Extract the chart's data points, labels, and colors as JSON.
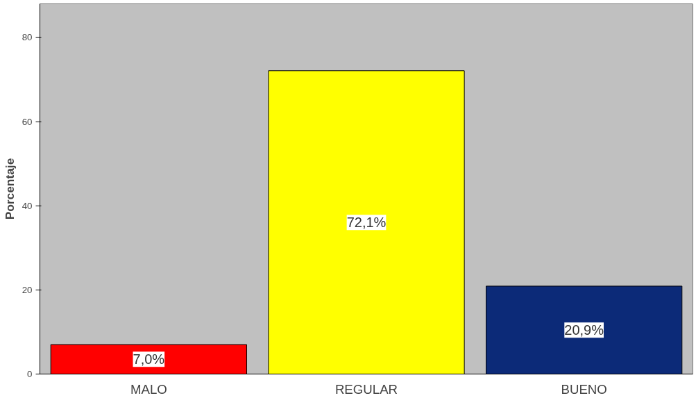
{
  "chart_data": {
    "type": "bar",
    "ylabel": "Porcentaje",
    "categories": [
      "MALO",
      "REGULAR",
      "BUENO"
    ],
    "values": [
      7.0,
      72.1,
      20.9
    ],
    "colors": [
      "#ff0000",
      "#ffff00",
      "#0c2a78"
    ],
    "value_labels": [
      "7,0%",
      "72,1%",
      "20,9%"
    ],
    "ylim": [
      0,
      88
    ],
    "yticks": [
      0,
      20,
      40,
      60,
      80
    ]
  }
}
